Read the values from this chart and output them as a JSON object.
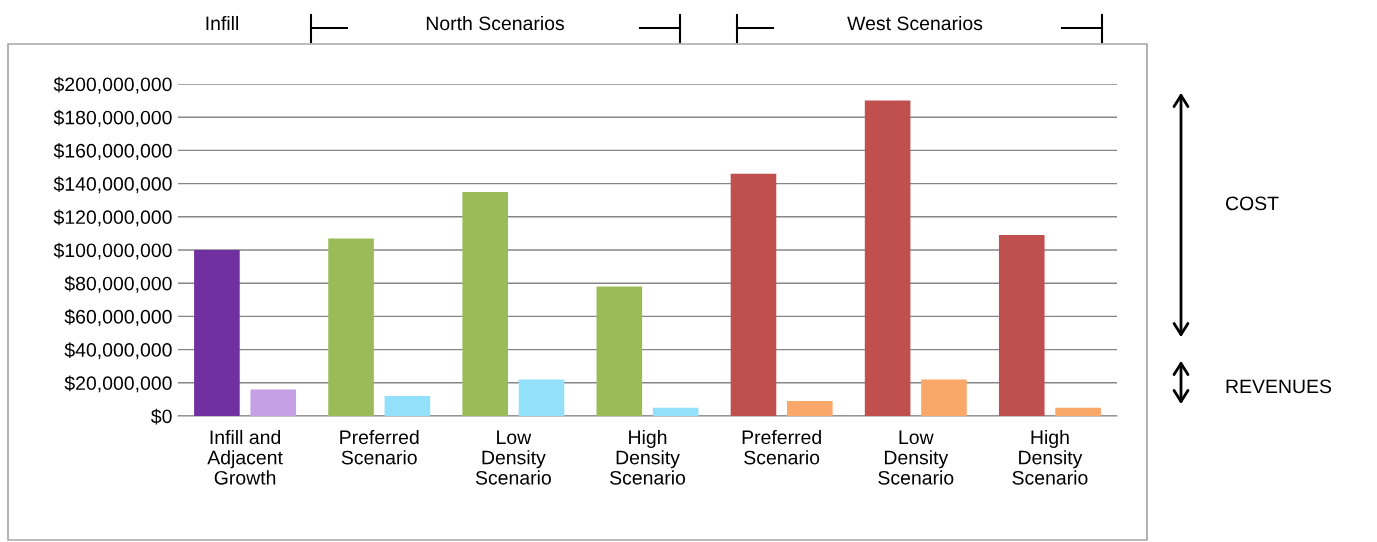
{
  "chart_data": {
    "type": "bar",
    "categories": [
      "Infill and\nAdjacent\nGrowth",
      "Preferred\nScenario",
      "Low\nDensity\nScenario",
      "High\nDensity\nScenario",
      "Preferred\nScenario",
      "Low\nDensity\nScenario",
      "High\nDensity\nScenario"
    ],
    "series": [
      {
        "colors": [
          "#7030a0",
          "#9bbb59",
          "#9bbb59",
          "#9bbb59",
          "#c0504d",
          "#c0504d",
          "#c0504d"
        ],
        "values": [
          100000000,
          107000000,
          135000000,
          78000000,
          146000000,
          190000000,
          109000000
        ]
      },
      {
        "colors": [
          "#c6a0e4",
          "#93e0fb",
          "#93e0fb",
          "#93e0fb",
          "#f9a86a",
          "#f9a86a",
          "#f9a86a"
        ],
        "values": [
          16000000,
          12000000,
          22000000,
          5000000,
          9000000,
          22000000,
          5000000
        ]
      }
    ],
    "ylim": [
      0,
      200000000
    ],
    "yticks": [
      {
        "value": 0,
        "label": "$0"
      },
      {
        "value": 20000000,
        "label": "$20,000,000"
      },
      {
        "value": 40000000,
        "label": "$40,000,000"
      },
      {
        "value": 60000000,
        "label": "$60,000,000"
      },
      {
        "value": 80000000,
        "label": "$80,000,000"
      },
      {
        "value": 100000000,
        "label": "$100,000,000"
      },
      {
        "value": 120000000,
        "label": "$120,000,000"
      },
      {
        "value": 140000000,
        "label": "$140,000,000"
      },
      {
        "value": 160000000,
        "label": "$160,000,000"
      },
      {
        "value": 180000000,
        "label": "$180,000,000"
      },
      {
        "value": 200000000,
        "label": "$200,000,000"
      }
    ],
    "grid": "y",
    "annotations": [
      "Infill",
      "North Scenarios",
      "West Scenarios",
      "COST",
      "REVENUES"
    ]
  }
}
